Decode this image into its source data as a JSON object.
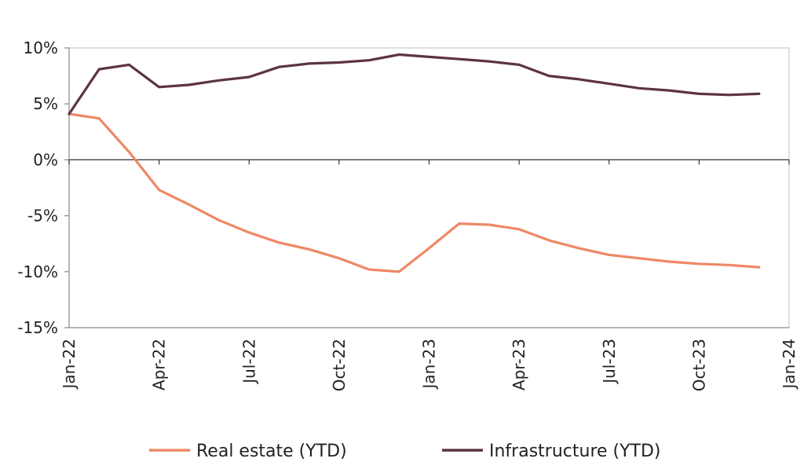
{
  "chart_data": {
    "type": "line",
    "title": "",
    "xlabel": "",
    "ylabel": "",
    "x": [
      "2022-01",
      "2022-02",
      "2022-03",
      "2022-04",
      "2022-05",
      "2022-06",
      "2022-07",
      "2022-08",
      "2022-09",
      "2022-10",
      "2022-11",
      "2022-12",
      "2023-01",
      "2023-02",
      "2023-03",
      "2023-04",
      "2023-05",
      "2023-06",
      "2023-07",
      "2023-08",
      "2023-09",
      "2023-10",
      "2023-11",
      "2023-12"
    ],
    "series": [
      {
        "name": "Real estate (YTD)",
        "color": "#ee8866",
        "values": [
          4.1,
          3.7,
          0.7,
          -2.7,
          -4.0,
          -5.4,
          -6.5,
          -7.4,
          -8.0,
          -8.8,
          -9.8,
          -10.0,
          -7.9,
          -5.7,
          -5.8,
          -6.2,
          -7.2,
          -7.9,
          -8.5,
          -8.8,
          -9.1,
          -9.3,
          -9.4,
          -9.6
        ]
      },
      {
        "name": "Infrastructure (YTD)",
        "color": "#5c3347",
        "values": [
          4.1,
          8.1,
          8.5,
          6.5,
          6.7,
          7.1,
          7.4,
          8.3,
          8.6,
          8.7,
          8.9,
          9.4,
          9.2,
          9.0,
          8.8,
          8.5,
          7.5,
          7.2,
          6.8,
          6.4,
          6.2,
          5.9,
          5.8,
          5.9
        ]
      }
    ],
    "ylim": [
      -15,
      10
    ],
    "yticks": [
      10,
      5,
      0,
      -5,
      -10,
      -15
    ],
    "ytick_labels": [
      "10%",
      "5%",
      "0%",
      "-5%",
      "-10%",
      "-15%"
    ],
    "xticks": [
      "2022-01",
      "2022-04",
      "2022-07",
      "2022-10",
      "2023-01",
      "2023-04",
      "2023-07",
      "2023-10",
      "2024-01"
    ],
    "xtick_labels": [
      "Jan-22",
      "Apr-22",
      "Jul-22",
      "Oct-22",
      "Jan-23",
      "Apr-23",
      "Jul-23",
      "Oct-23",
      "Jan-24"
    ],
    "grid": false,
    "legend_position": "bottom"
  }
}
